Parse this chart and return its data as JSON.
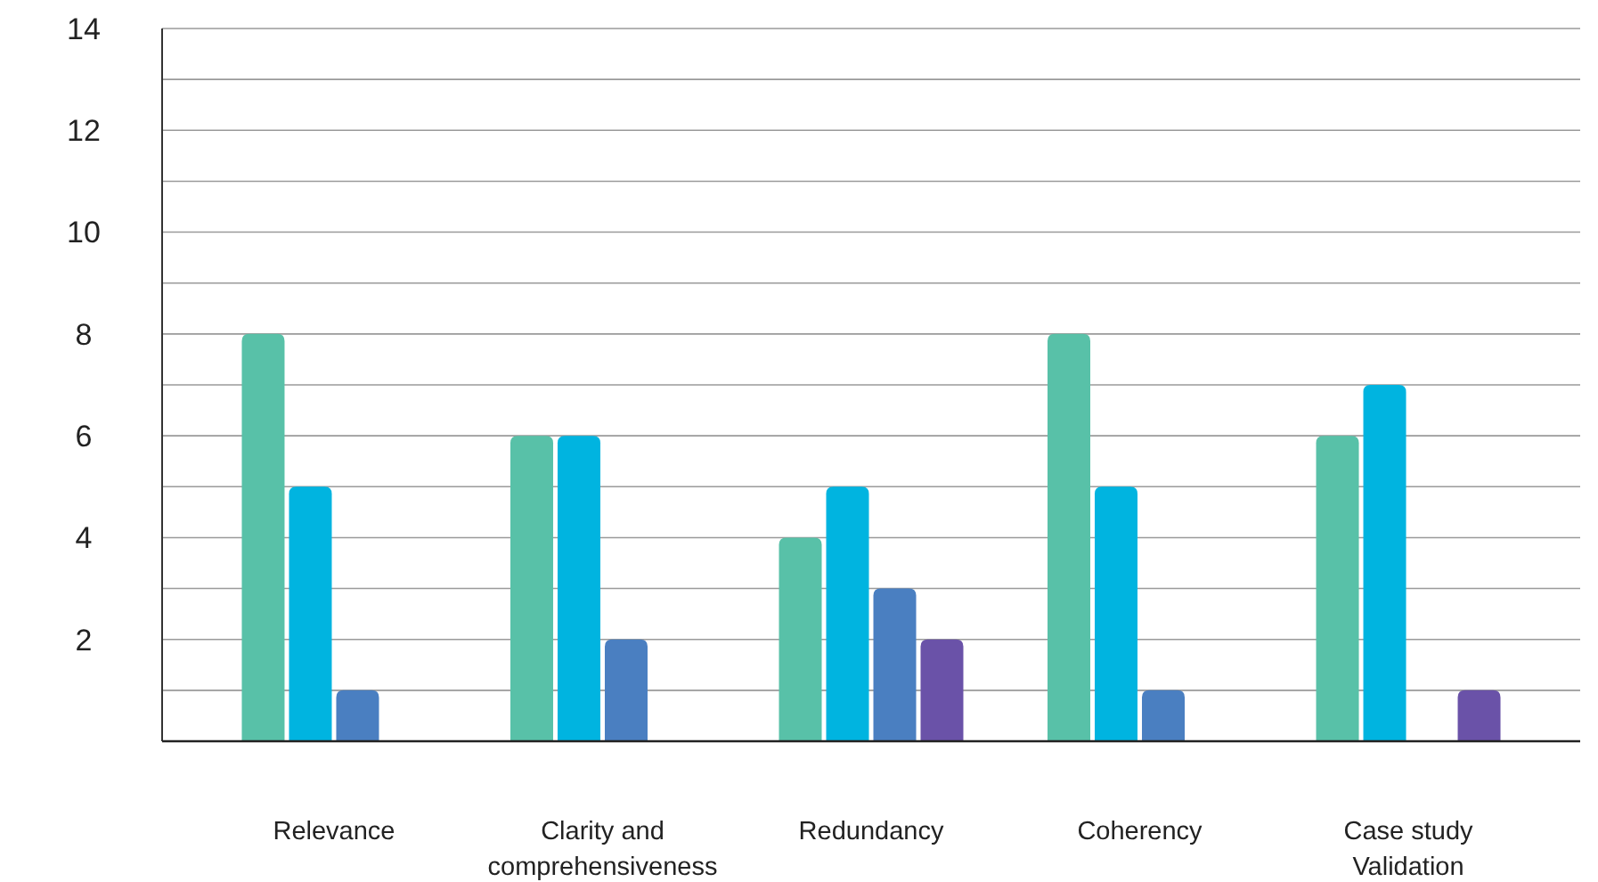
{
  "chart_data": {
    "type": "bar",
    "categories": [
      "Relevance",
      "Clarity and comprehensiveness",
      "Redundancy",
      "Coherency",
      "Case study Validation"
    ],
    "series": [
      {
        "color": "#58c1a8",
        "values": [
          8,
          6,
          4,
          8,
          6
        ]
      },
      {
        "color": "#00b4e0",
        "values": [
          5,
          6,
          5,
          5,
          7
        ]
      },
      {
        "color": "#4a7fc1",
        "values": [
          1,
          2,
          3,
          1,
          null
        ]
      },
      {
        "color": "#6a52a8",
        "values": [
          null,
          null,
          2,
          null,
          1
        ]
      }
    ],
    "ylim": [
      0,
      14
    ],
    "yticks": [
      {
        "value": 1,
        "label": null
      },
      2,
      {
        "value": 3,
        "label": null
      },
      4,
      {
        "value": 5,
        "label": null
      },
      6,
      {
        "value": 7,
        "label": null
      },
      8,
      {
        "value": 9,
        "label": null
      },
      10,
      {
        "value": 11,
        "label": null
      },
      12,
      {
        "value": 13,
        "label": null
      },
      14
    ],
    "grid": "y"
  }
}
